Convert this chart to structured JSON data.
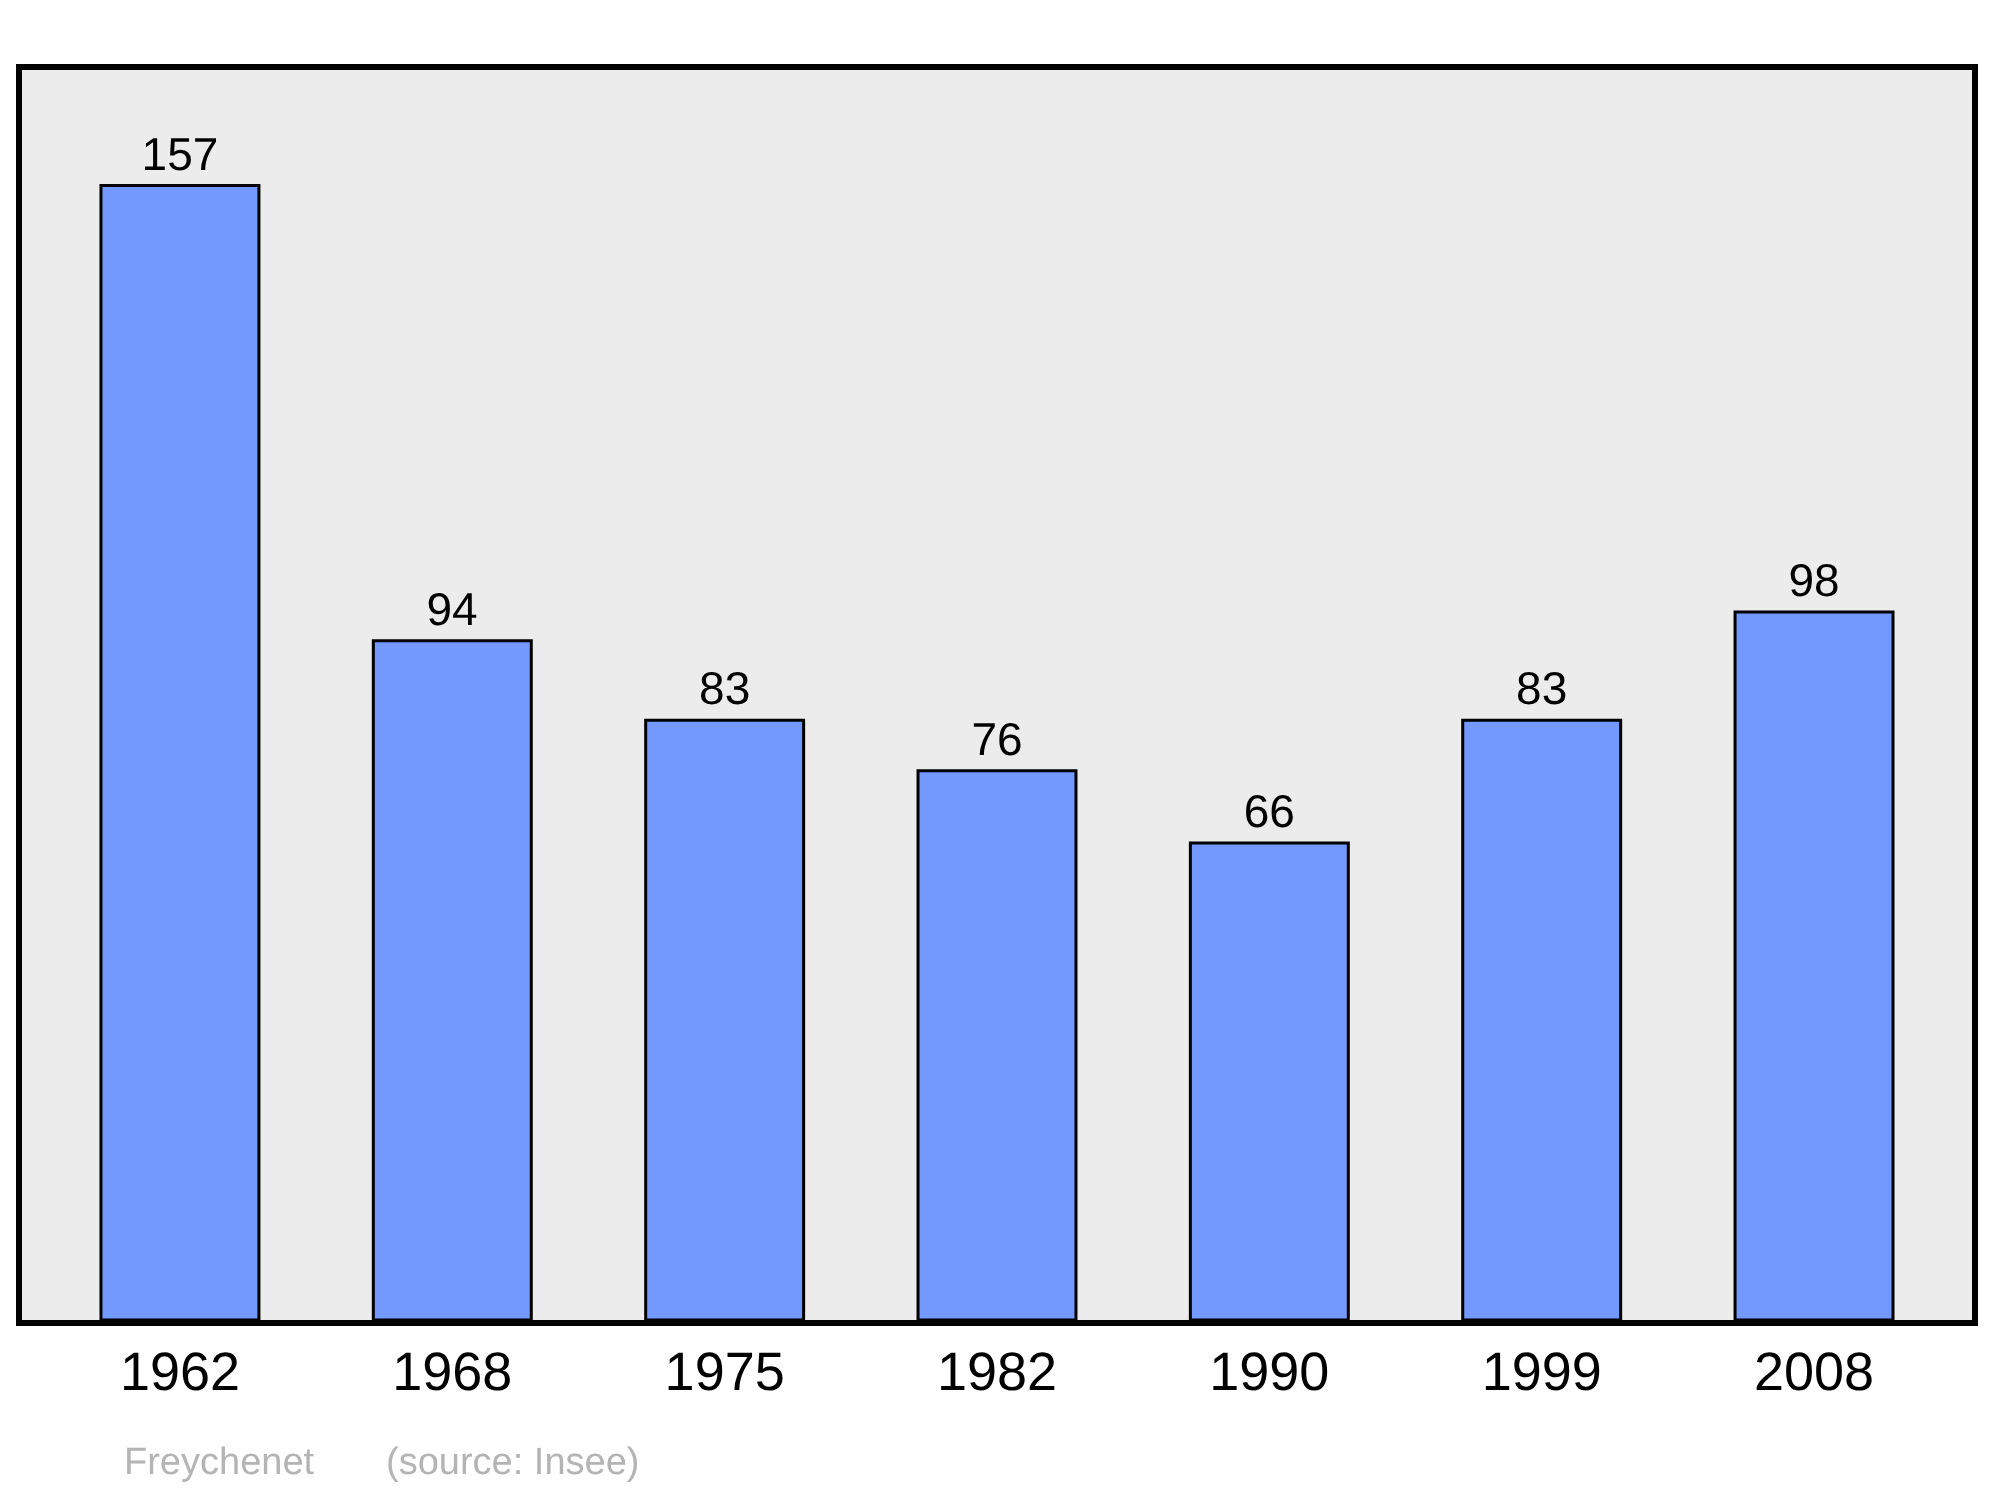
{
  "chart_data": {
    "type": "bar",
    "categories": [
      "1962",
      "1968",
      "1975",
      "1982",
      "1990",
      "1999",
      "2008"
    ],
    "values": [
      157,
      94,
      83,
      76,
      66,
      83,
      98
    ],
    "color": "#7399ff",
    "ylim": [
      0,
      173
    ],
    "data_labels": true,
    "grid": false,
    "legend": false,
    "tick_labels": "x",
    "annotations": [
      "Freychenet",
      "(source: Insee)"
    ]
  }
}
